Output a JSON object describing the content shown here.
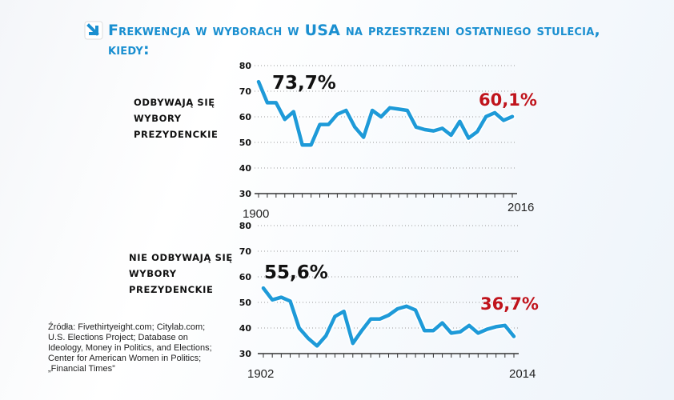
{
  "header": {
    "title": "Frekwencja w wyborach w USA na przestrzeni ostatniego stulecia, kiedy:",
    "icon": "arrow-down-right-icon"
  },
  "sources": [
    "Źródła: Fivethirtyeight.com; Citylab.com;",
    "U.S. Elections Project; Database on",
    "Ideology, Money in Politics, and Elections;",
    "Center for American Women in Politics;",
    "„Financial Times”"
  ],
  "colors": {
    "accent": "#1a8fd0",
    "line": "#1e9ad8",
    "highlight": "#c0141c",
    "text": "#111111"
  },
  "chart_data": [
    {
      "type": "line",
      "label_lines": [
        "ODBYWAJĄ SIĘ",
        "WYBORY",
        "PREZYDENCKIE"
      ],
      "x_start": 1900,
      "x_step": 4,
      "x_tick_labels": [
        "1900",
        "2016"
      ],
      "ylim": [
        30,
        80
      ],
      "y_ticks": [
        "30",
        "40",
        "50",
        "60",
        "70",
        "80"
      ],
      "grid": true,
      "values": [
        73.7,
        65.5,
        65.5,
        59,
        62,
        49,
        49,
        57,
        57,
        61,
        62.5,
        56,
        52,
        62.5,
        60,
        63.5,
        63,
        62.5,
        56,
        55,
        54.5,
        55.5,
        52.8,
        58.2,
        51.7,
        54.2,
        60.1,
        61.6,
        58.6,
        60.1
      ],
      "annotations": {
        "first": "73,7%",
        "last": "60,1%"
      }
    },
    {
      "type": "line",
      "label_lines": [
        "NIE ODBYWAJĄ SIĘ",
        "WYBORY",
        "PREZYDENCKIE"
      ],
      "x_start": 1902,
      "x_step": 4,
      "x_tick_labels": [
        "1902",
        "2014"
      ],
      "ylim": [
        30,
        80
      ],
      "y_ticks": [
        "30",
        "40",
        "50",
        "60",
        "70",
        "80"
      ],
      "grid": true,
      "values": [
        55.6,
        51,
        52,
        50.5,
        40,
        36,
        33,
        37,
        44.5,
        46.5,
        34,
        39,
        43.5,
        43.5,
        45,
        47.5,
        48.5,
        47,
        39,
        39,
        42,
        38,
        38.5,
        41,
        38,
        39.5,
        40.5,
        41,
        36.7
      ],
      "annotations": {
        "first": "55,6%",
        "last": "36,7%"
      }
    }
  ]
}
